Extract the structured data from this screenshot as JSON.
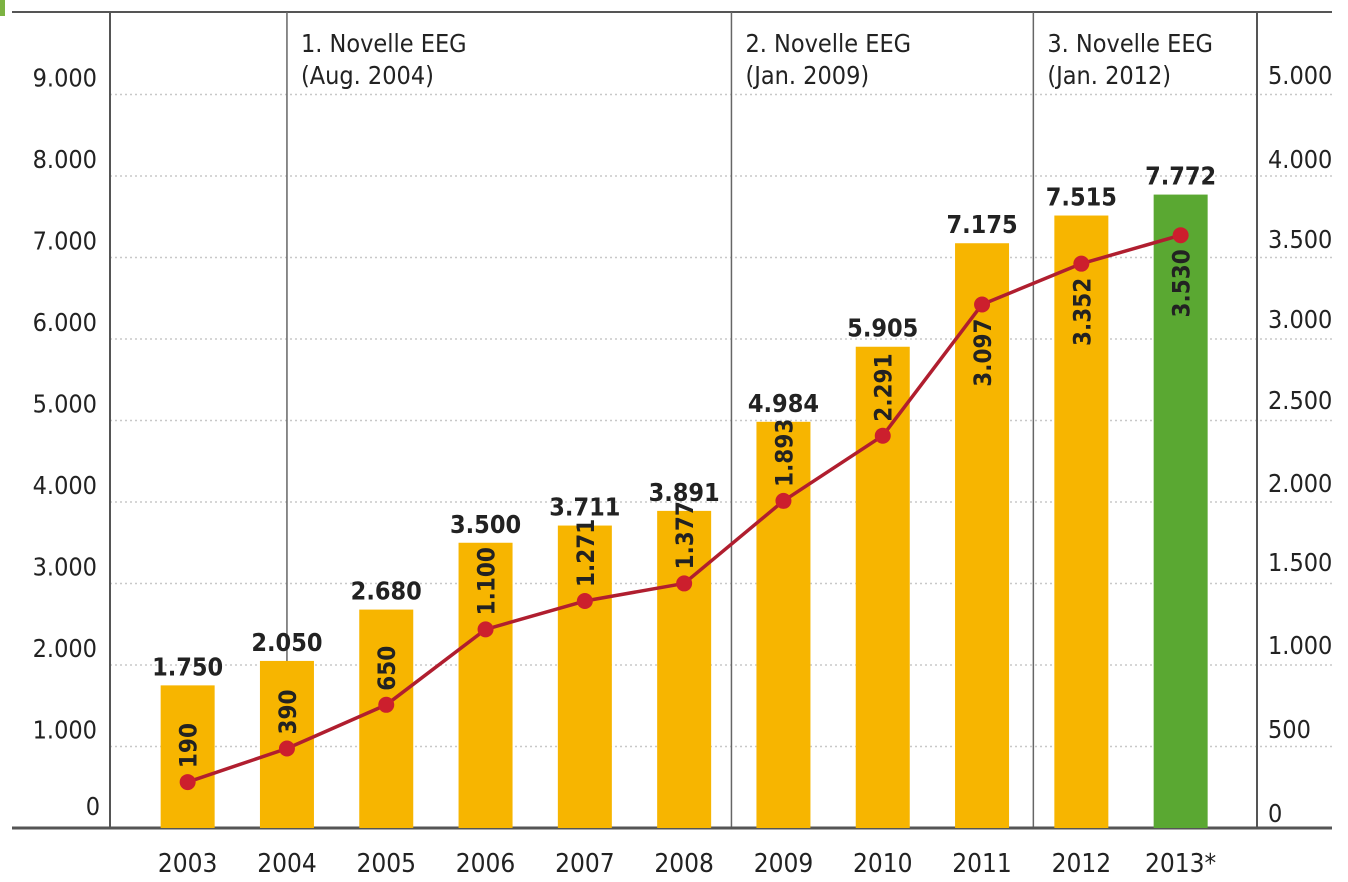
{
  "chart_data": {
    "type": "bar",
    "categories": [
      "2003",
      "2004",
      "2005",
      "2006",
      "2007",
      "2008",
      "2009",
      "2010",
      "2011",
      "2012",
      "2013*"
    ],
    "series": [
      {
        "axis": "left",
        "kind": "bar",
        "values": [
          1750,
          2050,
          2680,
          3500,
          3711,
          3891,
          4984,
          5905,
          7175,
          7515,
          7772
        ],
        "value_labels": [
          "1.750",
          "2.050",
          "2.680",
          "3.500",
          "3.711",
          "3.891",
          "4.984",
          "5.905",
          "7.175",
          "7.515",
          "7.772"
        ]
      },
      {
        "axis": "right",
        "kind": "line",
        "values": [
          190,
          390,
          650,
          1100,
          1271,
          1377,
          1893,
          2291,
          3097,
          3352,
          3530
        ],
        "value_labels": [
          "190",
          "390",
          "650",
          "1.100",
          "1.271",
          "1.377",
          "1.893",
          "2.291",
          "3.097",
          "3.352",
          "3.530"
        ]
      }
    ],
    "left_axis": {
      "ylim": [
        0,
        9000
      ],
      "ticks": [
        0,
        1000,
        2000,
        3000,
        4000,
        5000,
        6000,
        7000,
        8000,
        9000
      ],
      "tick_labels": [
        "0",
        "1.000",
        "2.000",
        "3.000",
        "4.000",
        "5.000",
        "6.000",
        "7.000",
        "8.000",
        "9.000"
      ]
    },
    "right_axis": {
      "ticks": [
        0,
        500,
        1000,
        1500,
        2000,
        2500,
        3000,
        3500,
        4000,
        5000
      ],
      "tick_labels": [
        "0",
        "500",
        "1.000",
        "1.500",
        "2.000",
        "2.500",
        "3.000",
        "3.500",
        "4.000",
        "5.000"
      ]
    },
    "annotations": [
      {
        "after_category": "2004",
        "line1": "1. Novelle EEG",
        "line2": "(Aug. 2004)"
      },
      {
        "after_category": "2009",
        "line1": "2. Novelle EEG",
        "line2": "(Jan. 2009)"
      },
      {
        "after_category": "2012",
        "line1": "3. Novelle EEG",
        "line2": "(Jan. 2012)"
      }
    ],
    "grid": true,
    "legend": "none",
    "title": "",
    "xlabel": "",
    "ylabel": ""
  },
  "colors": {
    "bar": "#f7b500",
    "bar_highlight": "#5aa832",
    "line": "#b01e2f",
    "marker": "#cc1f2d",
    "axis": "#555555",
    "divider": "#666666",
    "grid": "#c8c8c8",
    "text": "#222222"
  }
}
